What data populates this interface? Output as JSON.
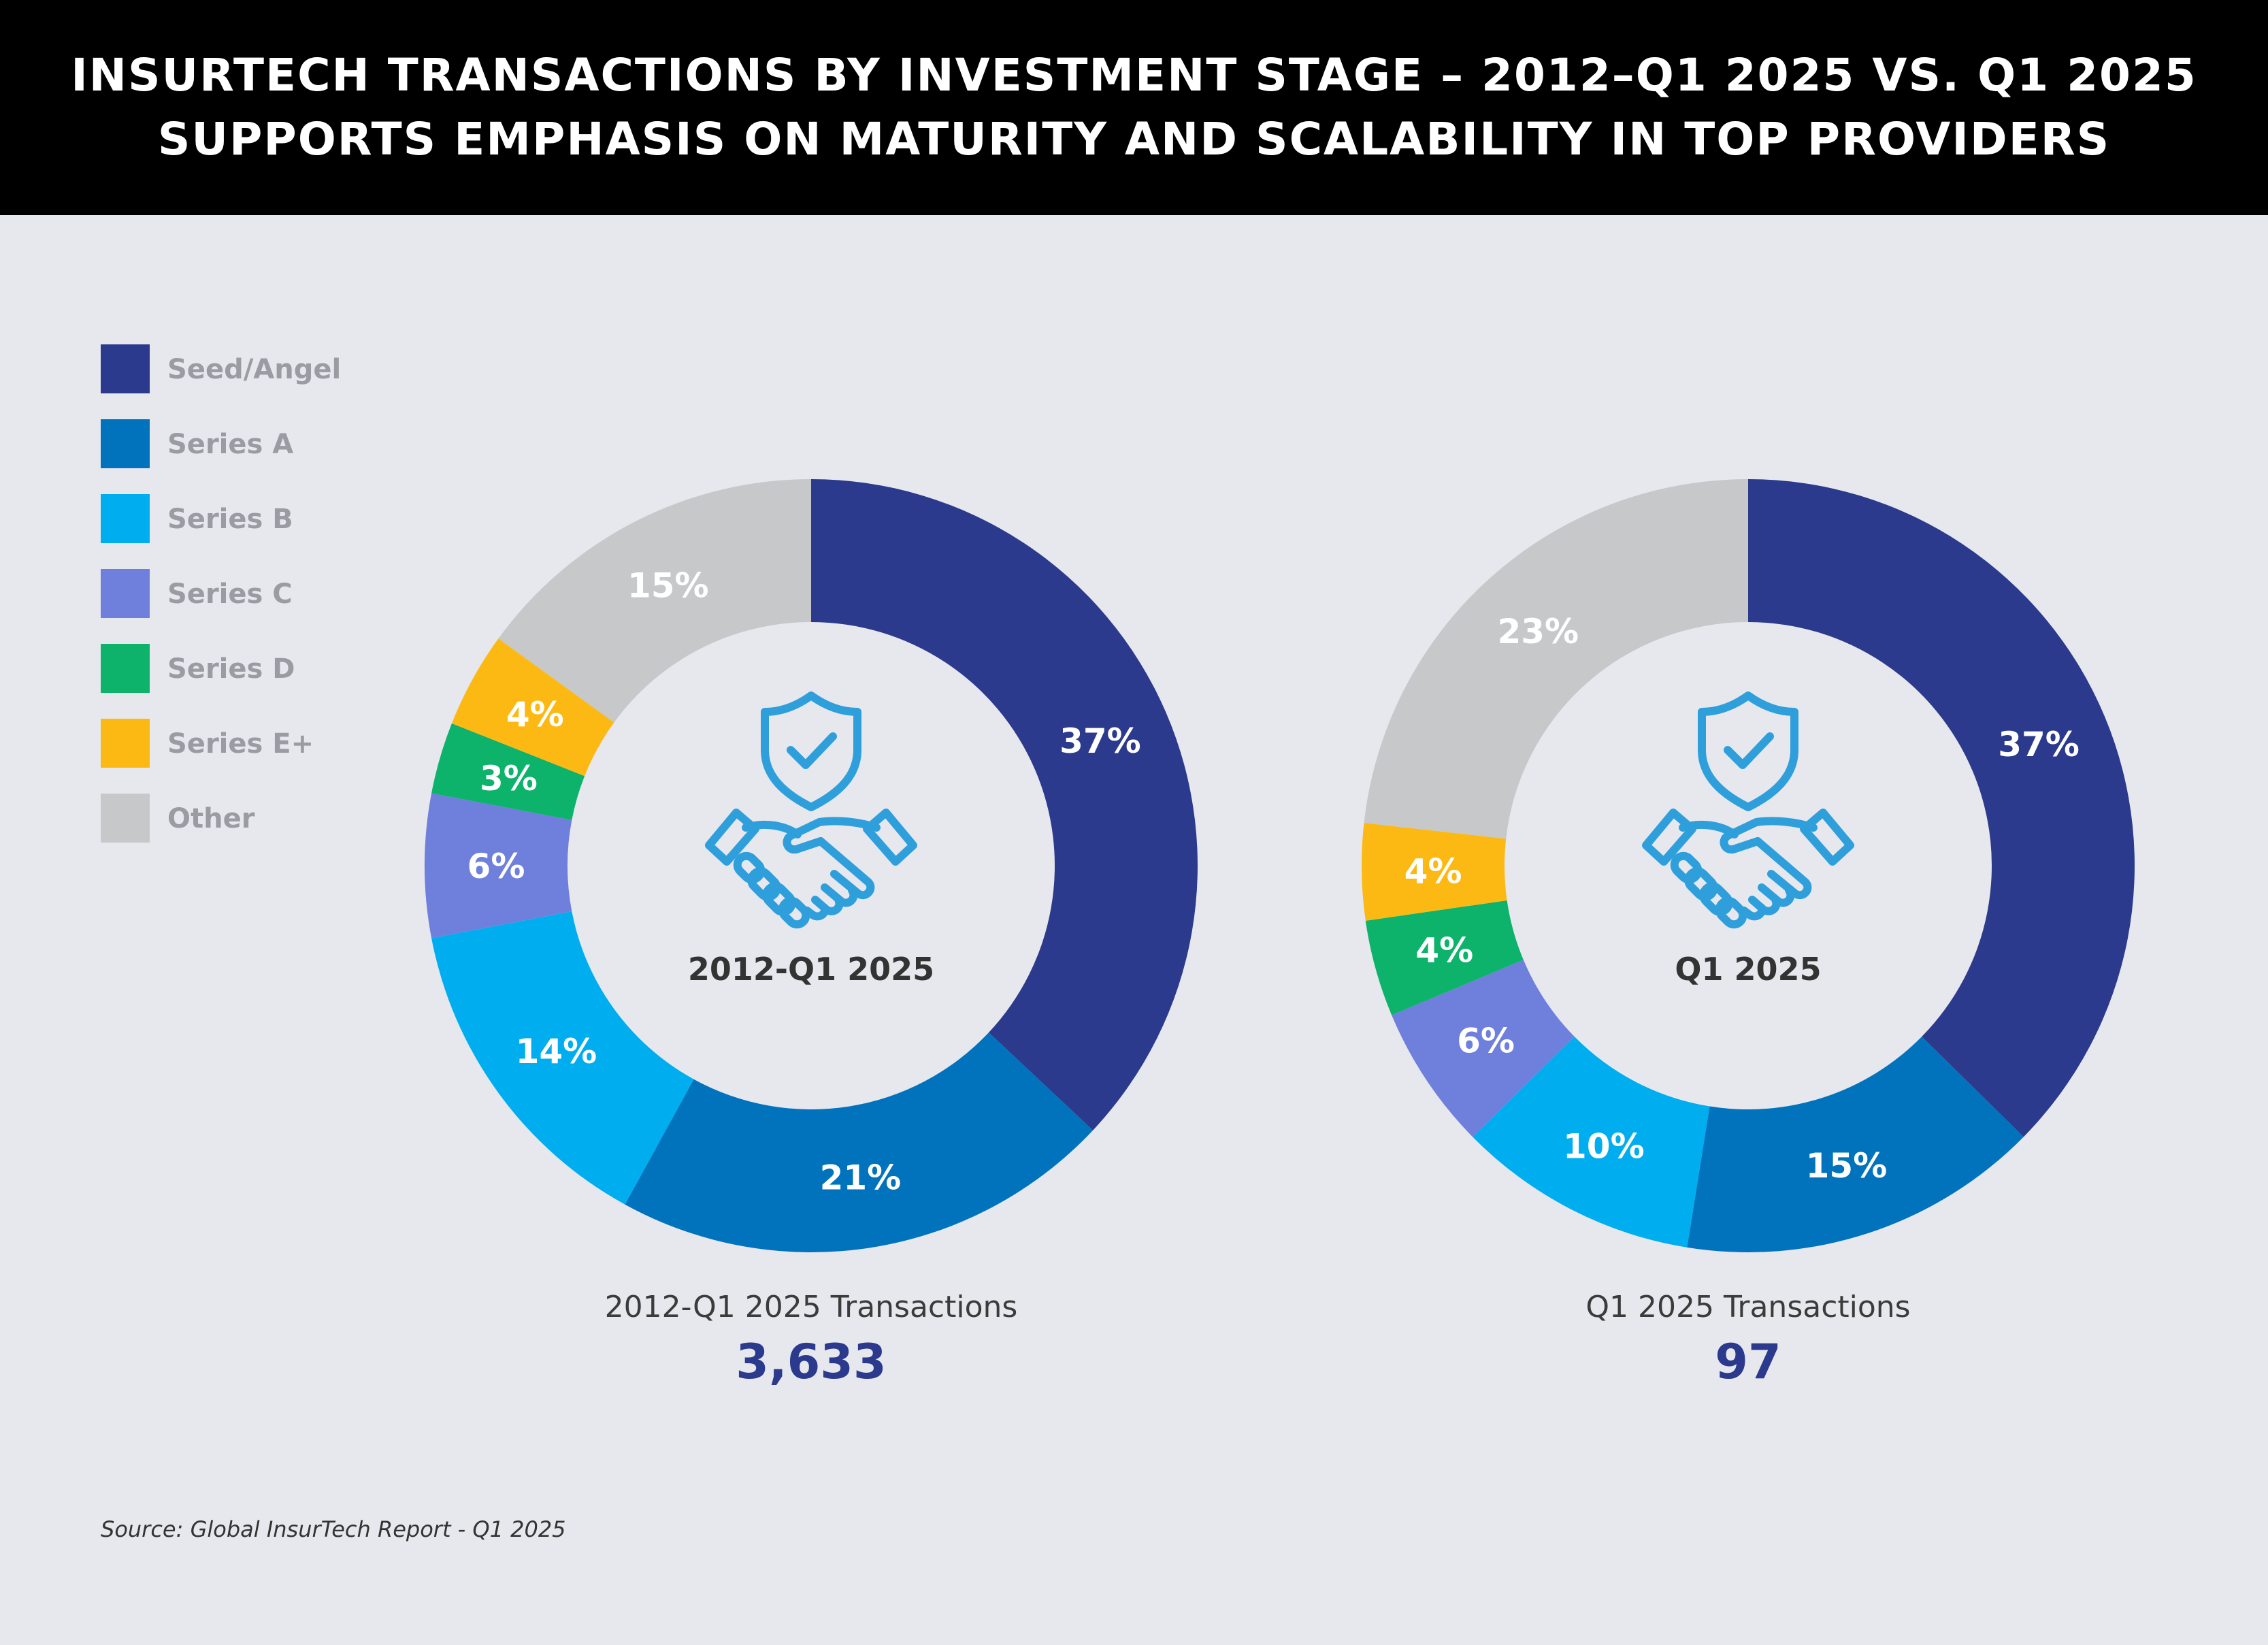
{
  "header": {
    "line1": "INSURTECH TRANSACTIONS BY INVESTMENT STAGE – 2012–Q1 2025 VS. Q1 2025",
    "line2": "SUPPORTS EMPHASIS ON MATURITY AND SCALABILITY IN TOP PROVIDERS"
  },
  "legend": [
    {
      "label": "Seed/Angel",
      "color": "#2b3a8c"
    },
    {
      "label": "Series A",
      "color": "#0173bc"
    },
    {
      "label": "Series B",
      "color": "#00aeef"
    },
    {
      "label": "Series C",
      "color": "#6f7fdc"
    },
    {
      "label": "Series D",
      "color": "#0db26b"
    },
    {
      "label": "Series E+",
      "color": "#fdb913"
    },
    {
      "label": "Other",
      "color": "#c7c8ca"
    }
  ],
  "chart_data": [
    {
      "type": "pie",
      "donut": true,
      "center_label": "2012-Q1 2025",
      "caption": "2012-Q1 2025 Transactions",
      "total": "3,633",
      "categories": [
        "Seed/Angel",
        "Series A",
        "Series B",
        "Series C",
        "Series D",
        "Series E+",
        "Other"
      ],
      "values": [
        37,
        21,
        14,
        6,
        3,
        4,
        15
      ],
      "labels": [
        "37%",
        "21%",
        "14%",
        "6%",
        "3%",
        "4%",
        "15%"
      ]
    },
    {
      "type": "pie",
      "donut": true,
      "center_label": "Q1 2025",
      "caption": "Q1 2025 Transactions",
      "total": "97",
      "categories": [
        "Seed/Angel",
        "Series A",
        "Series B",
        "Series C",
        "Series D",
        "Series E+",
        "Other"
      ],
      "values": [
        37,
        15,
        10,
        6,
        4,
        4,
        23
      ],
      "labels": [
        "37%",
        "15%",
        "10%",
        "6%",
        "4%",
        "4%",
        "23%"
      ]
    }
  ],
  "icons": {
    "center": "shield-handshake-icon"
  },
  "source": "Source: Global InsurTech Report - Q1 2025"
}
